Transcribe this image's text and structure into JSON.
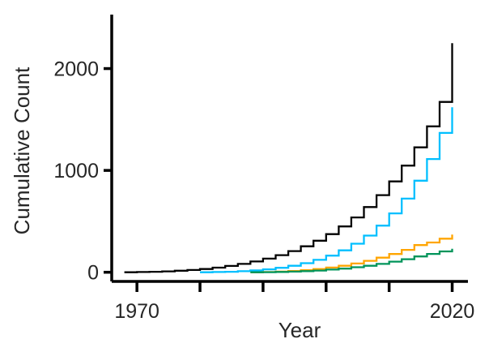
{
  "chart_data": {
    "type": "line",
    "step": true,
    "title": "",
    "xlabel": "Year",
    "ylabel": "Cumulative Count",
    "xlim": [
      1966,
      2022.5
    ],
    "ylim": [
      -90,
      2530
    ],
    "x_ticks": [
      1970,
      1980,
      1990,
      2000,
      2010,
      2020
    ],
    "x_tick_labels": [
      "1970",
      "",
      "",
      "",
      "",
      "2020"
    ],
    "y_ticks": [
      0,
      1000,
      2000
    ],
    "y_tick_labels": [
      "0",
      "1000",
      "2000"
    ],
    "grid": false,
    "legend": "none",
    "series": [
      {
        "color": "#000000",
        "x": [
          1968,
          1970,
          1972,
          1974,
          1976,
          1978,
          1980,
          1982,
          1984,
          1986,
          1988,
          1990,
          1992,
          1994,
          1996,
          1998,
          2000,
          2002,
          2004,
          2006,
          2008,
          2010,
          2012,
          2014,
          2016,
          2018,
          2020
        ],
        "y": [
          0,
          2,
          5,
          9,
          15,
          22,
          32,
          45,
          62,
          82,
          106,
          134,
          168,
          208,
          255,
          310,
          374,
          450,
          538,
          640,
          757,
          892,
          1047,
          1226,
          1433,
          1672,
          2250
        ]
      },
      {
        "color": "#00BFFF",
        "x": [
          1980,
          1982,
          1984,
          1986,
          1988,
          1990,
          1992,
          1994,
          1996,
          1998,
          2000,
          2002,
          2004,
          2006,
          2008,
          2010,
          2012,
          2014,
          2016,
          2018,
          2020
        ],
        "y": [
          0,
          2,
          5,
          10,
          18,
          29,
          44,
          64,
          89,
          122,
          163,
          215,
          280,
          360,
          458,
          578,
          723,
          899,
          1112,
          1368,
          1620
        ]
      },
      {
        "color": "#FFA500",
        "x": [
          1988,
          1990,
          1992,
          1994,
          1996,
          1998,
          2000,
          2002,
          2004,
          2006,
          2008,
          2010,
          2012,
          2014,
          2016,
          2018,
          2020
        ],
        "y": [
          0,
          2,
          6,
          12,
          20,
          31,
          46,
          64,
          86,
          112,
          143,
          179,
          220,
          267,
          292,
          330,
          370
        ]
      },
      {
        "color": "#00945A",
        "x": [
          1988,
          1990,
          1992,
          1994,
          1996,
          1998,
          2000,
          2002,
          2004,
          2006,
          2008,
          2010,
          2012,
          2014,
          2016,
          2018,
          2020
        ],
        "y": [
          0,
          1,
          3,
          6,
          11,
          17,
          26,
          36,
          49,
          64,
          82,
          104,
          128,
          155,
          180,
          205,
          230
        ]
      }
    ]
  }
}
